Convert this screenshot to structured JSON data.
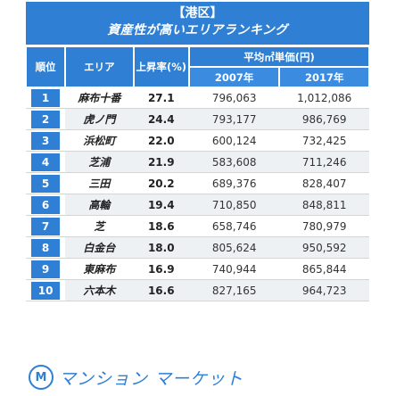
{
  "banner": {
    "line1": "【港区】",
    "line2": "資産性が高いエリアランキング"
  },
  "headers": {
    "rank": "順位",
    "area": "エリア",
    "rate": "上昇率(%)",
    "price_group": "平均㎡単価(円)",
    "y2007": "2007年",
    "y2017": "2017年"
  },
  "rows": [
    {
      "rank": "1",
      "area": "麻布十番",
      "rate": "27.1",
      "p2007": "796,063",
      "p2017": "1,012,086"
    },
    {
      "rank": "2",
      "area": "虎ノ門",
      "rate": "24.4",
      "p2007": "793,177",
      "p2017": "986,769"
    },
    {
      "rank": "3",
      "area": "浜松町",
      "rate": "22.0",
      "p2007": "600,124",
      "p2017": "732,425"
    },
    {
      "rank": "4",
      "area": "芝浦",
      "rate": "21.9",
      "p2007": "583,608",
      "p2017": "711,246"
    },
    {
      "rank": "5",
      "area": "三田",
      "rate": "20.2",
      "p2007": "689,376",
      "p2017": "828,407"
    },
    {
      "rank": "6",
      "area": "高輪",
      "rate": "19.4",
      "p2007": "710,850",
      "p2017": "848,811"
    },
    {
      "rank": "7",
      "area": "芝",
      "rate": "18.6",
      "p2007": "658,746",
      "p2017": "780,979"
    },
    {
      "rank": "8",
      "area": "白金台",
      "rate": "18.0",
      "p2007": "805,624",
      "p2017": "950,592"
    },
    {
      "rank": "9",
      "area": "東麻布",
      "rate": "16.9",
      "p2007": "740,944",
      "p2017": "865,844"
    },
    {
      "rank": "10",
      "area": "六本木",
      "rate": "16.6",
      "p2007": "827,165",
      "p2017": "964,723"
    }
  ],
  "logo": {
    "mark": "M",
    "text": "マンション マーケット"
  },
  "colors": {
    "accent": "#2f7fd4",
    "row_shade": "#eef1f4"
  }
}
